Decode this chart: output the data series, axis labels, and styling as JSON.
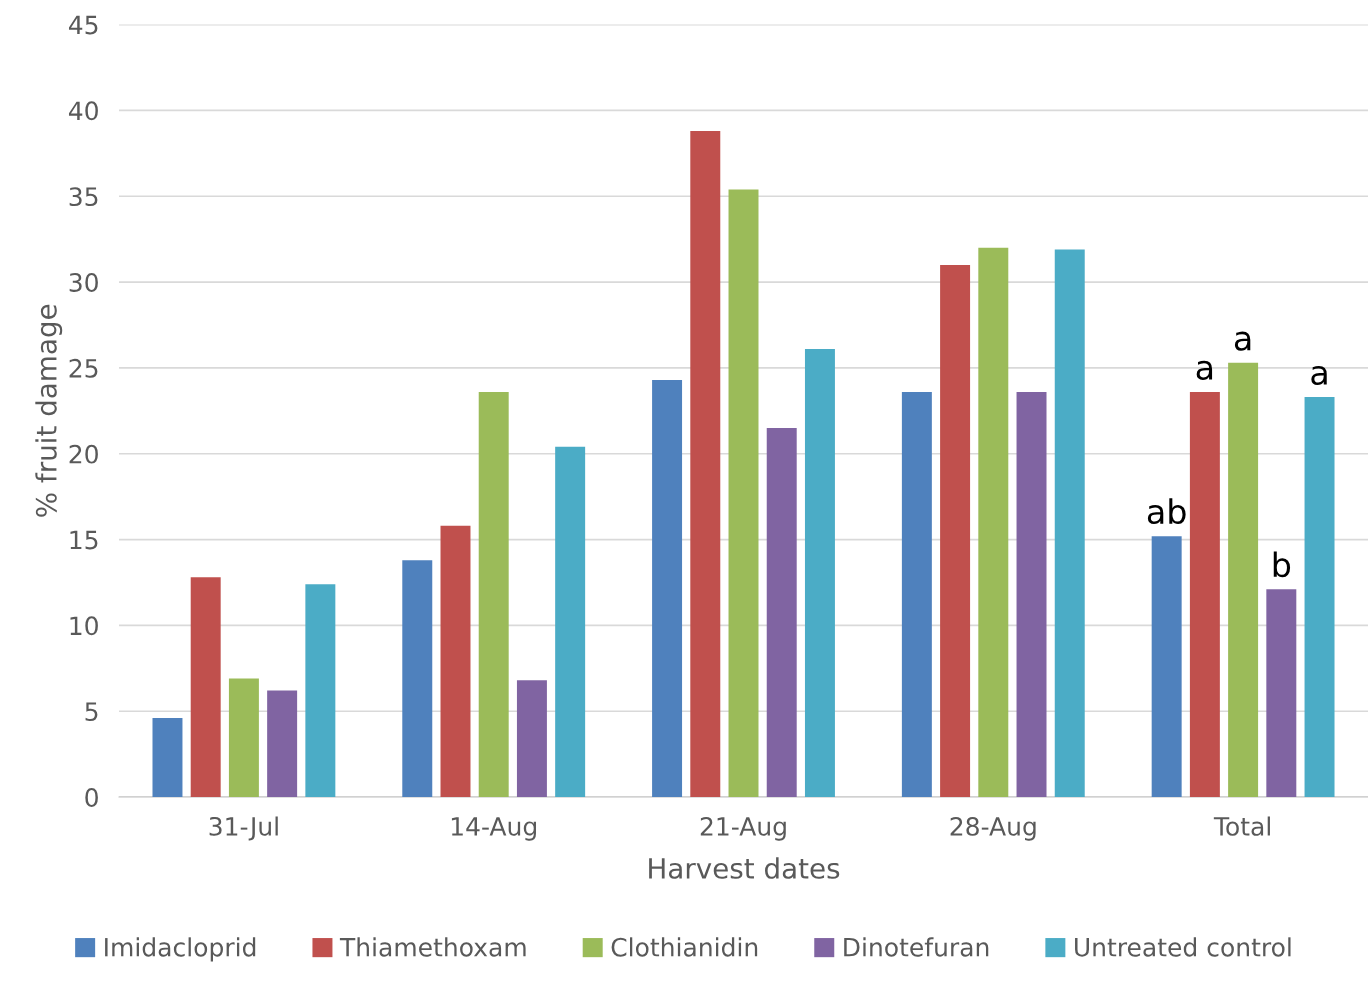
{
  "chart_data": {
    "type": "bar",
    "xlabel": "Harvest dates",
    "ylabel": "% fruit damage",
    "categories": [
      "31-Jul",
      "14-Aug",
      "21-Aug",
      "28-Aug",
      "Total"
    ],
    "series": [
      {
        "name": "Imidacloprid",
        "color": "#4f81bd",
        "values": [
          4.6,
          13.8,
          24.3,
          23.6,
          15.2
        ]
      },
      {
        "name": "Thiamethoxam",
        "color": "#c0504d",
        "values": [
          12.8,
          15.8,
          38.8,
          31.0,
          23.6
        ]
      },
      {
        "name": "Clothianidin",
        "color": "#9bbb59",
        "values": [
          6.9,
          23.6,
          35.4,
          32.0,
          25.3
        ]
      },
      {
        "name": "Dinotefuran",
        "color": "#8064a2",
        "values": [
          6.2,
          6.8,
          21.5,
          23.6,
          12.1
        ]
      },
      {
        "name": "Untreated control",
        "color": "#4bacc6",
        "values": [
          12.4,
          20.4,
          26.1,
          31.9,
          23.3
        ]
      }
    ],
    "ylim": [
      0,
      45
    ],
    "yticks": [
      0,
      5,
      10,
      15,
      20,
      25,
      30,
      35,
      40,
      45
    ],
    "grid": "y",
    "legend": "bottom",
    "annotations": [
      "ab",
      "a",
      "a",
      "b",
      "a"
    ]
  }
}
